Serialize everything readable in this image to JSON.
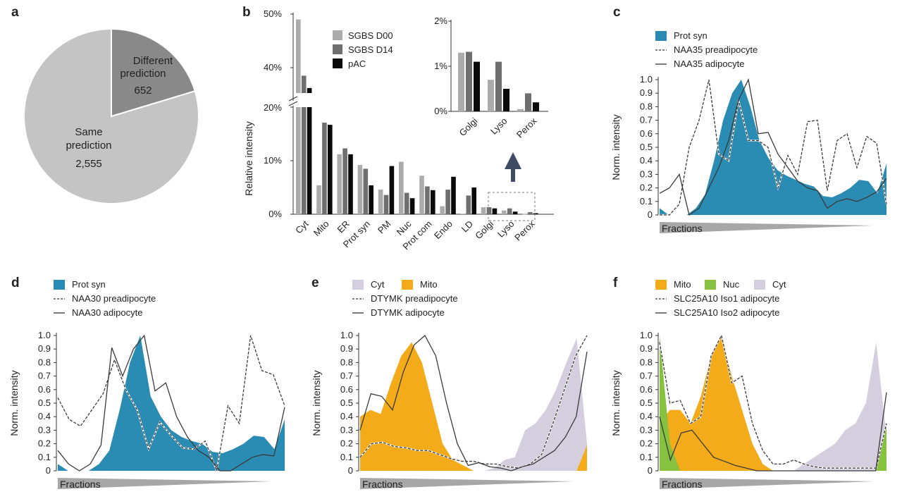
{
  "colors": {
    "prot_syn": "#2a8cb3",
    "mito": "#f3ab1a",
    "nuc": "#86c23f",
    "cyt": "#d5cedf",
    "pie_light": "#c4c4c4",
    "pie_dark": "#898989",
    "bar_d00": "#ababab",
    "bar_d14": "#6f6f6f",
    "bar_pac": "#0a0a0a",
    "line": "#3a3a3a"
  },
  "panels": {
    "a": "a",
    "b": "b",
    "c": "c",
    "d": "d",
    "e": "e",
    "f": "f"
  },
  "chart_data": [
    {
      "panel": "a",
      "type": "pie",
      "slices": [
        {
          "label_line1": "Different",
          "label_line2": "prediction",
          "value": 652,
          "value_label": "652"
        },
        {
          "label_line1": "Same",
          "label_line2": "prediction",
          "value": 2555,
          "value_label": "2,555"
        }
      ]
    },
    {
      "panel": "b",
      "type": "bar",
      "ylabel": "Relative intensity",
      "yticks_low": [
        "0%",
        "10%",
        "20%"
      ],
      "yticks_high": [
        "40%",
        "50%"
      ],
      "categories": [
        "Cyt",
        "Mito",
        "ER",
        "Prot syn",
        "PM",
        "Nuc",
        "Prot com",
        "Endo",
        "LD",
        "Golgi",
        "Lyso",
        "Perox"
      ],
      "series": [
        {
          "name": "SGBS D00",
          "values": [
            49,
            5.4,
            11.2,
            9.2,
            4.6,
            9.8,
            7.2,
            1.5,
            0.1,
            1.3,
            0.7,
            0.05
          ]
        },
        {
          "name": "SGBS D14",
          "values": [
            38.5,
            17.1,
            12.3,
            8.5,
            3.6,
            4.0,
            5.2,
            4.6,
            3.5,
            1.32,
            1.1,
            0.4
          ]
        },
        {
          "name": "pAC",
          "values": [
            36.2,
            16.7,
            11.2,
            5.4,
            9.0,
            3.0,
            4.5,
            7.0,
            5.0,
            1.1,
            0.5,
            0.2
          ]
        }
      ],
      "inset": {
        "categories": [
          "Golgi",
          "Lyso",
          "Perox"
        ],
        "yticks": [
          "0%",
          "1%",
          "2%"
        ],
        "ylim": [
          0,
          2
        ]
      }
    },
    {
      "panel": "c",
      "type": "area",
      "ylabel": "Norm. intensity",
      "xlabel": "Fractions",
      "yticks": [
        "0",
        "0.1",
        "0.2",
        "0.3",
        "0.4",
        "0.5",
        "0.6",
        "0.7",
        "0.8",
        "0.9",
        "1.0"
      ],
      "legend": [
        {
          "name": "Prot syn",
          "kind": "area",
          "color": "#2a8cb3"
        },
        {
          "name": "NAA35 preadipocyte",
          "kind": "dashed"
        },
        {
          "name": "NAA35 adipocyte",
          "kind": "solid"
        }
      ],
      "areas": [
        {
          "name": "Prot syn",
          "color": "#2a8cb3",
          "values": [
            0.05,
            0.0,
            0.0,
            0.0,
            0.05,
            0.15,
            0.4,
            0.7,
            0.9,
            1.0,
            0.8,
            0.55,
            0.42,
            0.33,
            0.29,
            0.26,
            0.23,
            0.21,
            0.14,
            0.13,
            0.16,
            0.2,
            0.26,
            0.25,
            0.16,
            0.38
          ]
        }
      ],
      "lines": [
        {
          "name": "NAA35 preadipocyte",
          "style": "dashed",
          "values": [
            0.0,
            0.0,
            0.08,
            0.5,
            0.7,
            1.0,
            0.45,
            0.4,
            0.85,
            0.55,
            0.55,
            0.5,
            0.2,
            0.44,
            0.3,
            0.69,
            0.7,
            0.18,
            0.55,
            0.6,
            0.35,
            0.58,
            0.53,
            0.08
          ]
        },
        {
          "name": "NAA35 adipocyte",
          "style": "solid",
          "values": [
            0.16,
            0.2,
            0.3,
            0.0,
            0.05,
            0.2,
            0.35,
            0.55,
            0.85,
            1.0,
            0.6,
            0.61,
            0.45,
            0.35,
            0.25,
            0.2,
            0.18,
            0.05,
            0.1,
            0.12,
            0.1,
            0.13,
            0.17,
            0.27
          ]
        }
      ]
    },
    {
      "panel": "d",
      "type": "area",
      "ylabel": "Norm. intensity",
      "xlabel": "Fractions",
      "yticks": [
        "0",
        "0.1",
        "0.2",
        "0.3",
        "0.4",
        "0.5",
        "0.6",
        "0.7",
        "0.8",
        "0.9",
        "1.0"
      ],
      "legend": [
        {
          "name": "Prot syn",
          "kind": "area",
          "color": "#2a8cb3"
        },
        {
          "name": "NAA30 preadipocyte",
          "kind": "dashed"
        },
        {
          "name": "NAA30 adipocyte",
          "kind": "solid"
        }
      ],
      "areas": [
        {
          "name": "Prot syn",
          "color": "#2a8cb3",
          "values": [
            0.05,
            0.0,
            0.0,
            0.0,
            0.05,
            0.15,
            0.45,
            0.8,
            1.0,
            0.55,
            0.4,
            0.3,
            0.25,
            0.22,
            0.2,
            0.14,
            0.13,
            0.16,
            0.2,
            0.26,
            0.25,
            0.16,
            0.38
          ]
        }
      ],
      "lines": [
        {
          "name": "NAA30 preadipocyte",
          "style": "dashed",
          "values": [
            0.54,
            0.38,
            0.33,
            0.45,
            0.57,
            0.82,
            0.6,
            0.45,
            0.16,
            0.36,
            0.26,
            0.17,
            0.16,
            0.22,
            0.0,
            0.48,
            0.35,
            1.0,
            0.74,
            0.71,
            0.48
          ]
        },
        {
          "name": "NAA30 adipocyte",
          "style": "solid",
          "values": [
            0.15,
            0.05,
            0.0,
            0.05,
            0.19,
            0.91,
            0.7,
            0.9,
            1.0,
            0.59,
            0.65,
            0.4,
            0.25,
            0.15,
            0.1,
            0.0,
            0.0,
            0.05,
            0.1,
            0.12,
            0.11,
            0.47
          ]
        }
      ]
    },
    {
      "panel": "e",
      "type": "area",
      "ylabel": "Norm. intensity",
      "xlabel": "Fractions",
      "yticks": [
        "0",
        "0.1",
        "0.2",
        "0.3",
        "0.4",
        "0.5",
        "0.6",
        "0.7",
        "0.8",
        "0.9",
        "1.0"
      ],
      "legend": [
        {
          "name": "Cyt",
          "kind": "area",
          "color": "#d5cedf"
        },
        {
          "name": "Mito",
          "kind": "area",
          "color": "#f3ab1a"
        },
        {
          "name": "DTYMK preadipocyte",
          "kind": "dashed"
        },
        {
          "name": "DTYMK adipocyte",
          "kind": "solid"
        }
      ],
      "areas": [
        {
          "name": "Cyt",
          "color": "#d5cedf",
          "values": [
            0.28,
            0.1,
            0.05,
            0.0,
            0.0,
            0.0,
            0.0,
            0.0,
            0.0,
            0.0,
            0.0,
            0.0,
            0.0,
            0.02,
            0.08,
            0.1,
            0.3,
            0.35,
            0.45,
            0.6,
            0.8,
            0.98,
            0.2
          ]
        },
        {
          "name": "Mito",
          "color": "#f3ab1a",
          "values": [
            0.4,
            0.45,
            0.42,
            0.65,
            0.85,
            0.95,
            0.8,
            0.5,
            0.2,
            0.08,
            0.04,
            0.0,
            0.0,
            0.0,
            0.0,
            0.0,
            0.0,
            0.0,
            0.0,
            0.0,
            0.0,
            0.0,
            0.19
          ]
        }
      ],
      "lines": [
        {
          "name": "DTYMK preadipocyte",
          "style": "dashed",
          "values": [
            0.1,
            0.2,
            0.21,
            0.18,
            0.17,
            0.15,
            0.15,
            0.12,
            0.09,
            0.07,
            0.07,
            0.05,
            0.05,
            0.03,
            0.02,
            0.05,
            0.12,
            0.35,
            0.6,
            0.85,
            1.0
          ]
        },
        {
          "name": "DTYMK adipocyte",
          "style": "solid",
          "values": [
            0.3,
            0.57,
            0.55,
            0.45,
            0.73,
            0.93,
            1.0,
            0.85,
            0.5,
            0.2,
            0.04,
            0.06,
            0.03,
            0.02,
            0.0,
            0.03,
            0.05,
            0.1,
            0.15,
            0.25,
            0.4,
            0.88
          ]
        }
      ]
    },
    {
      "panel": "f",
      "type": "area",
      "ylabel": "Norm. intensity",
      "xlabel": "Fractions",
      "yticks": [
        "0",
        "0.1",
        "0.2",
        "0.3",
        "0.4",
        "0.5",
        "0.6",
        "0.7",
        "0.8",
        "0.9",
        "1.0"
      ],
      "legend": [
        {
          "name": "Mito",
          "kind": "area",
          "color": "#f3ab1a"
        },
        {
          "name": "Nuc",
          "kind": "area",
          "color": "#86c23f"
        },
        {
          "name": "Cyt",
          "kind": "area",
          "color": "#d5cedf"
        },
        {
          "name": "SLC25A10 Iso1 adipocyte",
          "kind": "dashed"
        },
        {
          "name": "SLC25A10 Iso2 adipocyte",
          "kind": "solid"
        }
      ],
      "areas": [
        {
          "name": "Cyt",
          "color": "#d5cedf",
          "values": [
            0.0,
            0.05,
            0.1,
            0.05,
            0.0,
            0.0,
            0.0,
            0.0,
            0.0,
            0.0,
            0.0,
            0.0,
            0.0,
            0.0,
            0.05,
            0.1,
            0.15,
            0.2,
            0.3,
            0.35,
            0.5,
            0.95,
            0.25
          ]
        },
        {
          "name": "Mito",
          "color": "#f3ab1a",
          "values": [
            0.35,
            0.45,
            0.45,
            0.35,
            0.55,
            0.85,
            1.0,
            0.7,
            0.45,
            0.2,
            0.05,
            0.0,
            0.0,
            0.0,
            0.0,
            0.0,
            0.0,
            0.0,
            0.0,
            0.0,
            0.0,
            0.0,
            0.0
          ]
        },
        {
          "name": "Nuc",
          "color": "#86c23f",
          "values": [
            1.0,
            0.2,
            0.0,
            0.0,
            0.0,
            0.0,
            0.0,
            0.0,
            0.0,
            0.0,
            0.0,
            0.0,
            0.0,
            0.0,
            0.0,
            0.0,
            0.0,
            0.0,
            0.0,
            0.0,
            0.0,
            0.0,
            0.33
          ]
        }
      ],
      "lines": [
        {
          "name": "SLC25A10 Iso1 adipocyte",
          "style": "dashed",
          "values": [
            0.95,
            0.5,
            0.52,
            0.35,
            0.4,
            0.85,
            1.0,
            0.65,
            0.7,
            0.35,
            0.15,
            0.05,
            0.05,
            0.08,
            0.05,
            0.03,
            0.02,
            0.02,
            0.02,
            0.02,
            0.02,
            0.02,
            0.35
          ]
        },
        {
          "name": "SLC25A10 Iso2 adipocyte",
          "style": "solid",
          "values": [
            0.4,
            0.08,
            0.28,
            0.3,
            0.2,
            0.1,
            0.07,
            0.04,
            0.02,
            0.0,
            0.0,
            0.0,
            0.0,
            0.0,
            0.0,
            0.0,
            0.0,
            0.0,
            0.0,
            0.0,
            0.0,
            0.58
          ]
        }
      ]
    }
  ]
}
